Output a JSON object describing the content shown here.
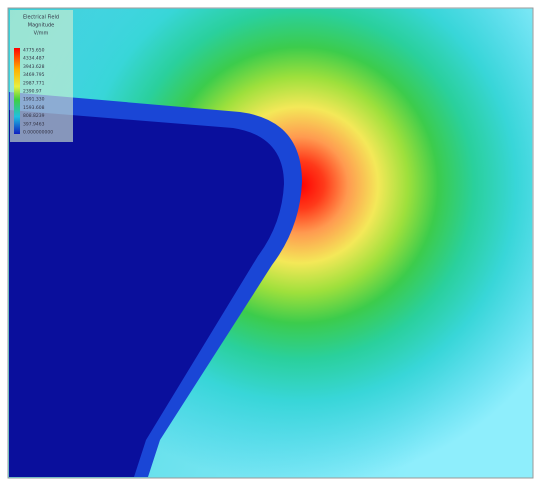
{
  "legend": {
    "title": [
      "Electrical Field",
      "Magnitude",
      "V/mm"
    ],
    "labels": [
      "4775.650",
      "4334.487",
      "3943.628",
      "3469.795",
      "2987.771",
      "2390.97",
      "1991.330",
      "1593.608",
      "808.8239",
      "397.9463",
      "0.000000000"
    ]
  }
}
